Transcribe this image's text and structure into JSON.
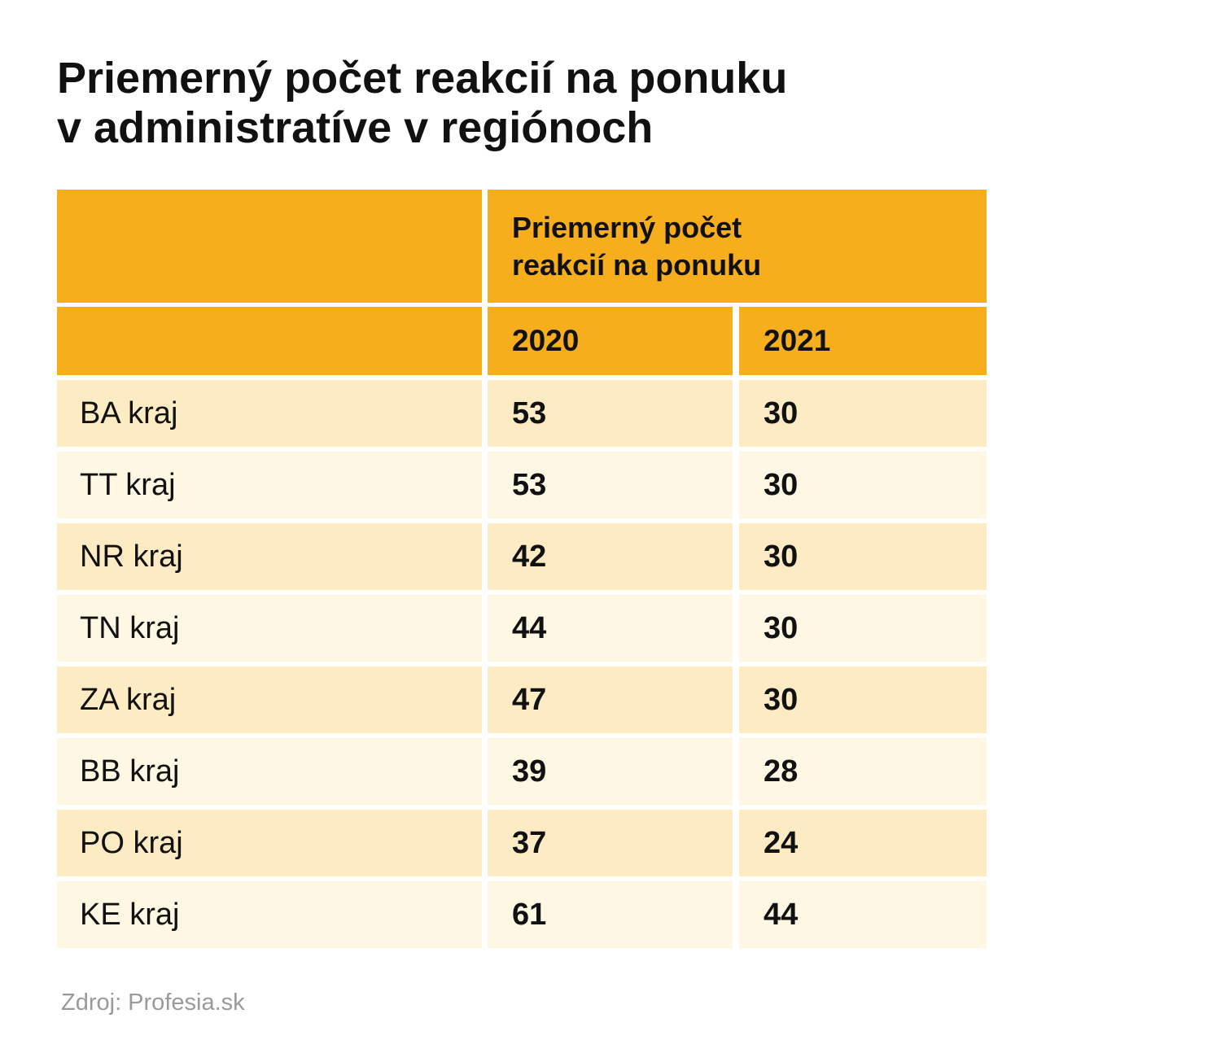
{
  "title": {
    "line1": "Priemerný počet reakcií na ponuku",
    "line2": "v administratíve v regiónoch"
  },
  "table": {
    "group_header": {
      "line1": "Priemerný počet",
      "line2": "reakcií na ponuku"
    },
    "years": [
      "2020",
      "2021"
    ],
    "rows": [
      {
        "region": "BA kraj",
        "v2020": "53",
        "v2021": "30"
      },
      {
        "region": "TT kraj",
        "v2020": "53",
        "v2021": "30"
      },
      {
        "region": "NR kraj",
        "v2020": "42",
        "v2021": "30"
      },
      {
        "region": "TN kraj",
        "v2020": "44",
        "v2021": "30"
      },
      {
        "region": "ZA kraj",
        "v2020": "47",
        "v2021": "30"
      },
      {
        "region": "BB kraj",
        "v2020": "39",
        "v2021": "28"
      },
      {
        "region": "PO kraj",
        "v2020": "37",
        "v2021": "24"
      },
      {
        "region": "KE kraj",
        "v2020": "61",
        "v2021": "44"
      }
    ]
  },
  "source": "Zdroj: Profesia.sk",
  "colors": {
    "header": "#f7ae1d",
    "row_odd": "#fdebc3",
    "row_even": "#fef7e4",
    "source_text": "#9a9a9a"
  },
  "chart_data": {
    "type": "table",
    "title": "Priemerný počet reakcií na ponuku v administratíve v regiónoch",
    "columns": [
      "",
      "2020",
      "2021"
    ],
    "group_header": "Priemerný počet reakcií na ponuku",
    "categories": [
      "BA kraj",
      "TT kraj",
      "NR kraj",
      "TN kraj",
      "ZA kraj",
      "BB kraj",
      "PO kraj",
      "KE kraj"
    ],
    "series": [
      {
        "name": "2020",
        "values": [
          53,
          53,
          42,
          44,
          47,
          39,
          37,
          61
        ]
      },
      {
        "name": "2021",
        "values": [
          30,
          30,
          30,
          30,
          30,
          28,
          24,
          44
        ]
      }
    ]
  }
}
